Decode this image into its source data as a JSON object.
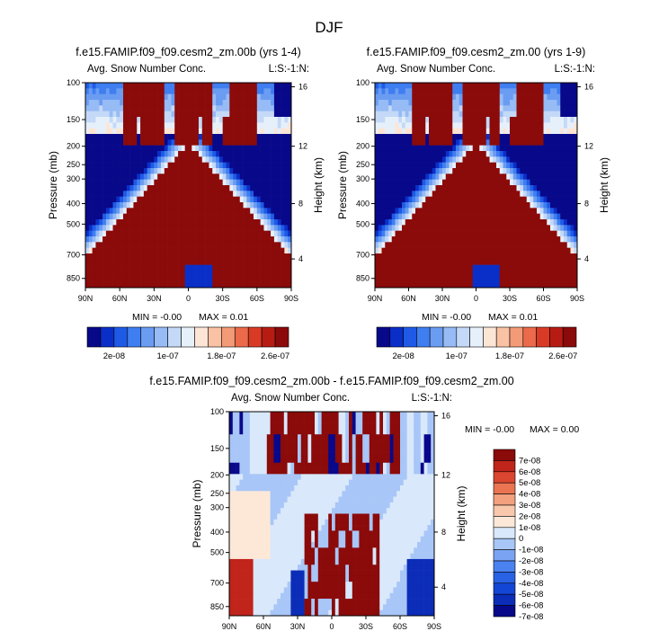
{
  "figure": {
    "title": "DJF"
  },
  "chart_data": [
    {
      "type": "heatmap",
      "title": "f.e15.FAMIP.f09_f09.cesm2_zm.00b (yrs 1-4)",
      "left_label": "Avg. Snow Number Conc.",
      "right_label": "L:S:-1:N:",
      "ylabel": "Pressure (mb)",
      "ylabel_right": "Height (km)",
      "x_ticks": [
        "90N",
        "60N",
        "30N",
        "0",
        "30S",
        "60S",
        "90S"
      ],
      "y_ticks": [
        "100",
        "150",
        "200",
        "250",
        "300",
        "400",
        "500",
        "700",
        "850"
      ],
      "y2_ticks": [
        "16",
        "12",
        "8",
        "4"
      ],
      "min_text": "MIN =  -0.00",
      "max_text": "MAX =  0.01",
      "colorbar_labels": [
        "2e-08",
        "1e-07",
        "1.8e-07",
        "2.6e-07"
      ]
    },
    {
      "type": "heatmap",
      "title": "f.e15.FAMIP.f09_f09.cesm2_zm.00 (yrs 1-9)",
      "left_label": "Avg. Snow Number Conc.",
      "right_label": "L:S:-1:N:",
      "ylabel": "Pressure (mb)",
      "ylabel_right": "Height (km)",
      "x_ticks": [
        "90N",
        "60N",
        "30N",
        "0",
        "30S",
        "60S",
        "90S"
      ],
      "y_ticks": [
        "100",
        "150",
        "200",
        "250",
        "300",
        "400",
        "500",
        "700",
        "850"
      ],
      "y2_ticks": [
        "16",
        "12",
        "8",
        "4"
      ],
      "min_text": "MIN =  -0.00",
      "max_text": "MAX =  0.01",
      "colorbar_labels": [
        "2e-08",
        "1e-07",
        "1.8e-07",
        "2.6e-07"
      ]
    },
    {
      "type": "heatmap",
      "title": "f.e15.FAMIP.f09_f09.cesm2_zm.00b - f.e15.FAMIP.f09_f09.cesm2_zm.00",
      "left_label": "Avg. Snow Number Conc.",
      "right_label": "L:S:-1:N:",
      "ylabel": "Pressure (mb)",
      "ylabel_right": "Height (km)",
      "x_ticks": [
        "90N",
        "60N",
        "30N",
        "0",
        "30S",
        "60S",
        "90S"
      ],
      "y_ticks": [
        "100",
        "150",
        "200",
        "250",
        "300",
        "400",
        "500",
        "700",
        "850"
      ],
      "y2_ticks": [
        "16",
        "12",
        "8",
        "4"
      ],
      "min_text": "MIN =  -0.00",
      "max_text": "MAX =  0.00",
      "colorbar_labels": [
        "7e-08",
        "6e-08",
        "5e-08",
        "4e-08",
        "3e-08",
        "2e-08",
        "1e-08",
        "0",
        "-1e-08",
        "-2e-08",
        "-3e-08",
        "-4e-08",
        "-5e-08",
        "-6e-08",
        "-7e-08"
      ]
    }
  ],
  "colors": {
    "abs_scale": [
      "#08088a",
      "#0a2fc8",
      "#1e5ae6",
      "#3f7ef0",
      "#6a9cf2",
      "#96bbf5",
      "#c4d9f7",
      "#e6f0fb",
      "#fde5d6",
      "#f9c2a4",
      "#f39a76",
      "#ea6a4a",
      "#d93a26",
      "#b71c12",
      "#8b0a0a"
    ],
    "diff_scale": [
      "#08088a",
      "#0c2db8",
      "#1446d6",
      "#2a62e6",
      "#4a82f0",
      "#7aa4f3",
      "#a8c6f7",
      "#d9e8fb",
      "#fde8d8",
      "#f9c8ac",
      "#f3a07e",
      "#ea7452",
      "#db4630",
      "#c0241a",
      "#8b0a0a"
    ]
  }
}
